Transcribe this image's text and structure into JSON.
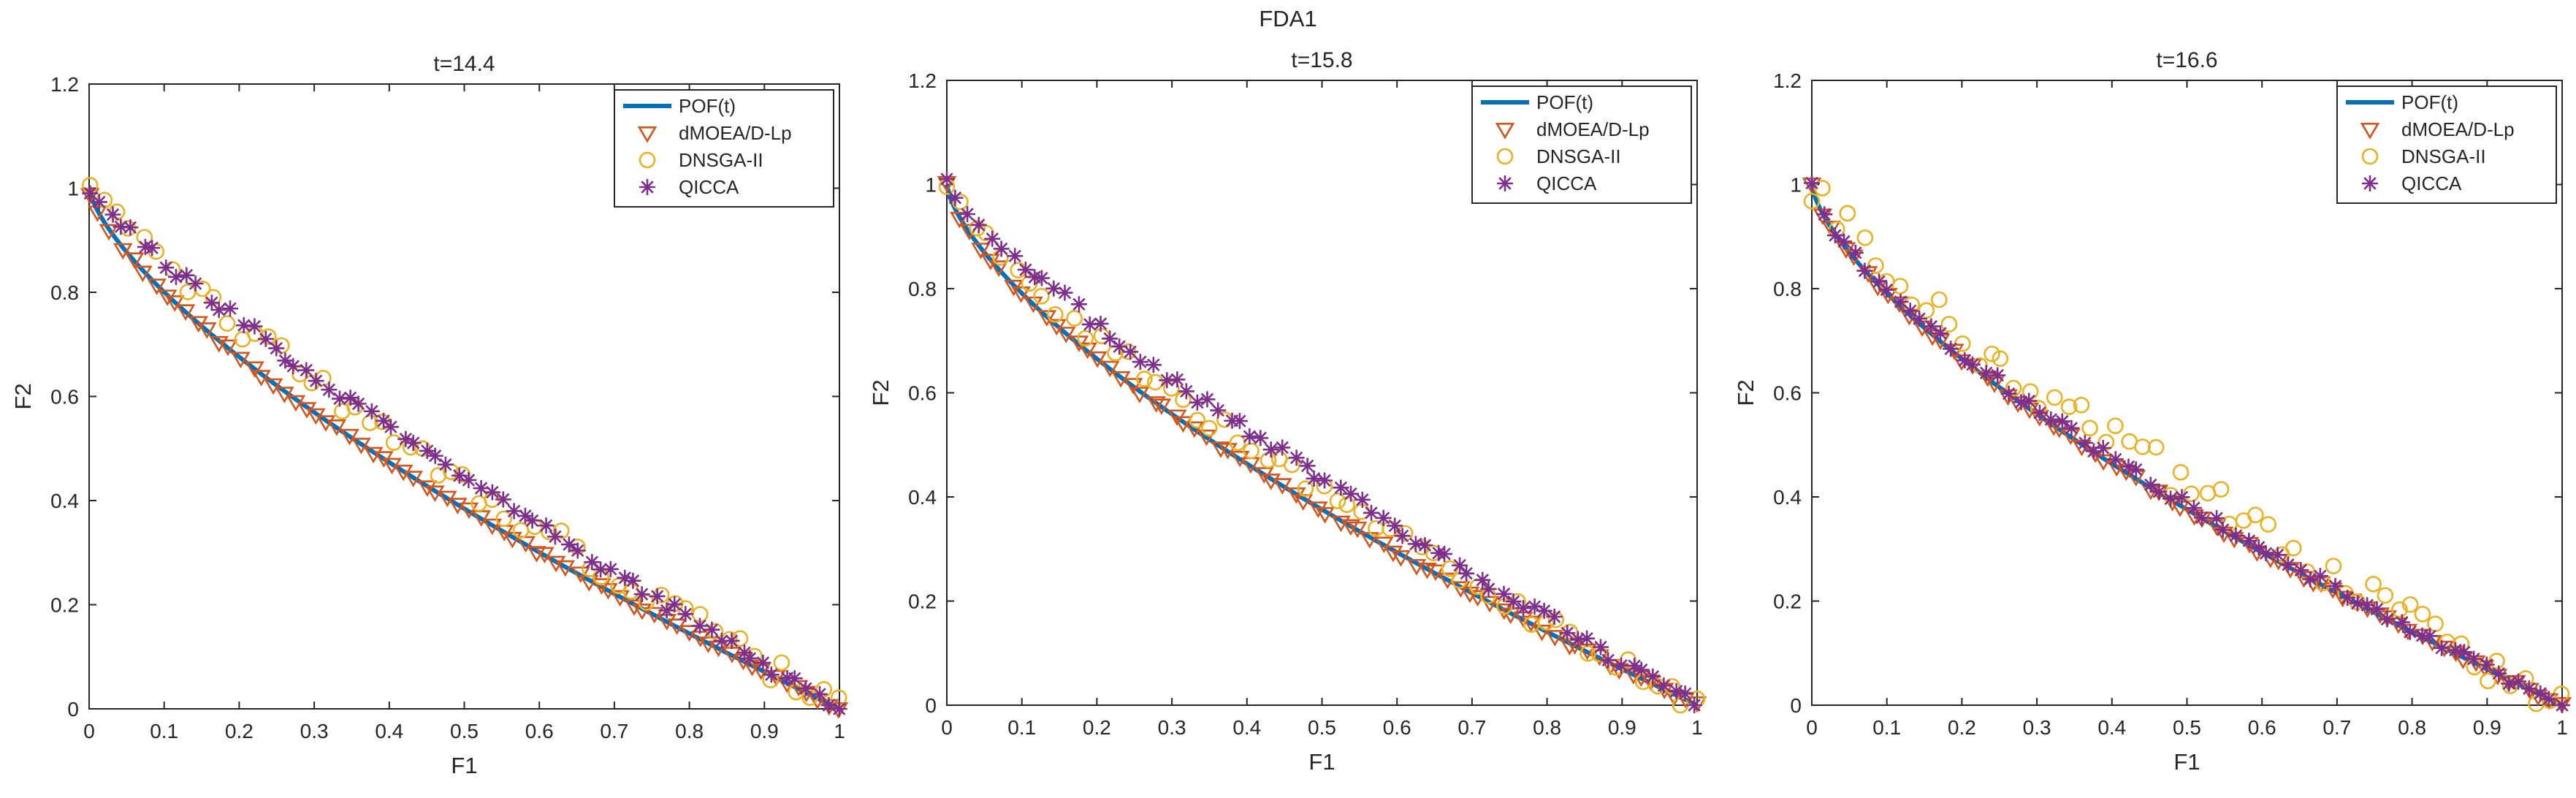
{
  "figure_title": "FDA1",
  "colors": {
    "pof": "#0072BD",
    "dmoea": "#D95319",
    "dnsga": "#EDB120",
    "qicca": "#7E2F8E",
    "axis": "#262626"
  },
  "chart_data": [
    {
      "type": "scatter",
      "title": "t=14.4",
      "xlabel": "F1",
      "ylabel": "F2",
      "xlim": [
        0,
        1
      ],
      "ylim": [
        0,
        1.2
      ],
      "xticks": [
        0,
        0.1,
        0.2,
        0.3,
        0.4,
        0.5,
        0.6,
        0.7,
        0.8,
        0.9,
        1
      ],
      "yticks": [
        0,
        0.2,
        0.4,
        0.6,
        0.8,
        1,
        1.2
      ],
      "grid": false,
      "legend_position": "top-right",
      "series": [
        {
          "name": "POF(t)",
          "kind": "line",
          "exponent": 0.7
        },
        {
          "name": "dMOEA/D-Lp",
          "kind": "triangle",
          "exponent": 0.7,
          "noise": 0.005,
          "points": 70
        },
        {
          "name": "DNSGA-II",
          "kind": "circle",
          "exponent": 0.83,
          "noise": 0.025,
          "points": 55
        },
        {
          "name": "QICCA",
          "kind": "asterisk",
          "exponent": 0.85,
          "noise": 0.012,
          "points": 70
        }
      ]
    },
    {
      "type": "scatter",
      "title": "t=15.8",
      "xlabel": "F1",
      "ylabel": "F2",
      "xlim": [
        0,
        1
      ],
      "ylim": [
        0,
        1.2
      ],
      "xticks": [
        0,
        0.1,
        0.2,
        0.3,
        0.4,
        0.5,
        0.6,
        0.7,
        0.8,
        0.9,
        1
      ],
      "yticks": [
        0,
        0.2,
        0.4,
        0.6,
        0.8,
        1,
        1.2
      ],
      "grid": false,
      "legend_position": "top-right",
      "series": [
        {
          "name": "POF(t)",
          "kind": "line",
          "exponent": 0.68
        },
        {
          "name": "dMOEA/D-Lp",
          "kind": "triangle",
          "exponent": 0.68,
          "noise": 0.005,
          "points": 70
        },
        {
          "name": "DNSGA-II",
          "kind": "circle",
          "exponent": 0.76,
          "noise": 0.02,
          "points": 55
        },
        {
          "name": "QICCA",
          "kind": "asterisk",
          "exponent": 0.82,
          "noise": 0.012,
          "points": 70
        }
      ]
    },
    {
      "type": "scatter",
      "title": "t=16.6",
      "xlabel": "F1",
      "ylabel": "F2",
      "xlim": [
        0,
        1
      ],
      "ylim": [
        0,
        1.2
      ],
      "xticks": [
        0,
        0.1,
        0.2,
        0.3,
        0.4,
        0.5,
        0.6,
        0.7,
        0.8,
        0.9,
        1
      ],
      "yticks": [
        0,
        0.2,
        0.4,
        0.6,
        0.8,
        1,
        1.2
      ],
      "grid": false,
      "legend_position": "top-right",
      "series": [
        {
          "name": "POF(t)",
          "kind": "line",
          "exponent": 0.68
        },
        {
          "name": "dMOEA/D-Lp",
          "kind": "triangle",
          "exponent": 0.68,
          "noise": 0.005,
          "points": 70
        },
        {
          "name": "DNSGA-II",
          "kind": "circle",
          "exponent": 0.78,
          "noise": 0.04,
          "points": 60
        },
        {
          "name": "QICCA",
          "kind": "asterisk",
          "exponent": 0.7,
          "noise": 0.01,
          "points": 70
        }
      ]
    }
  ]
}
